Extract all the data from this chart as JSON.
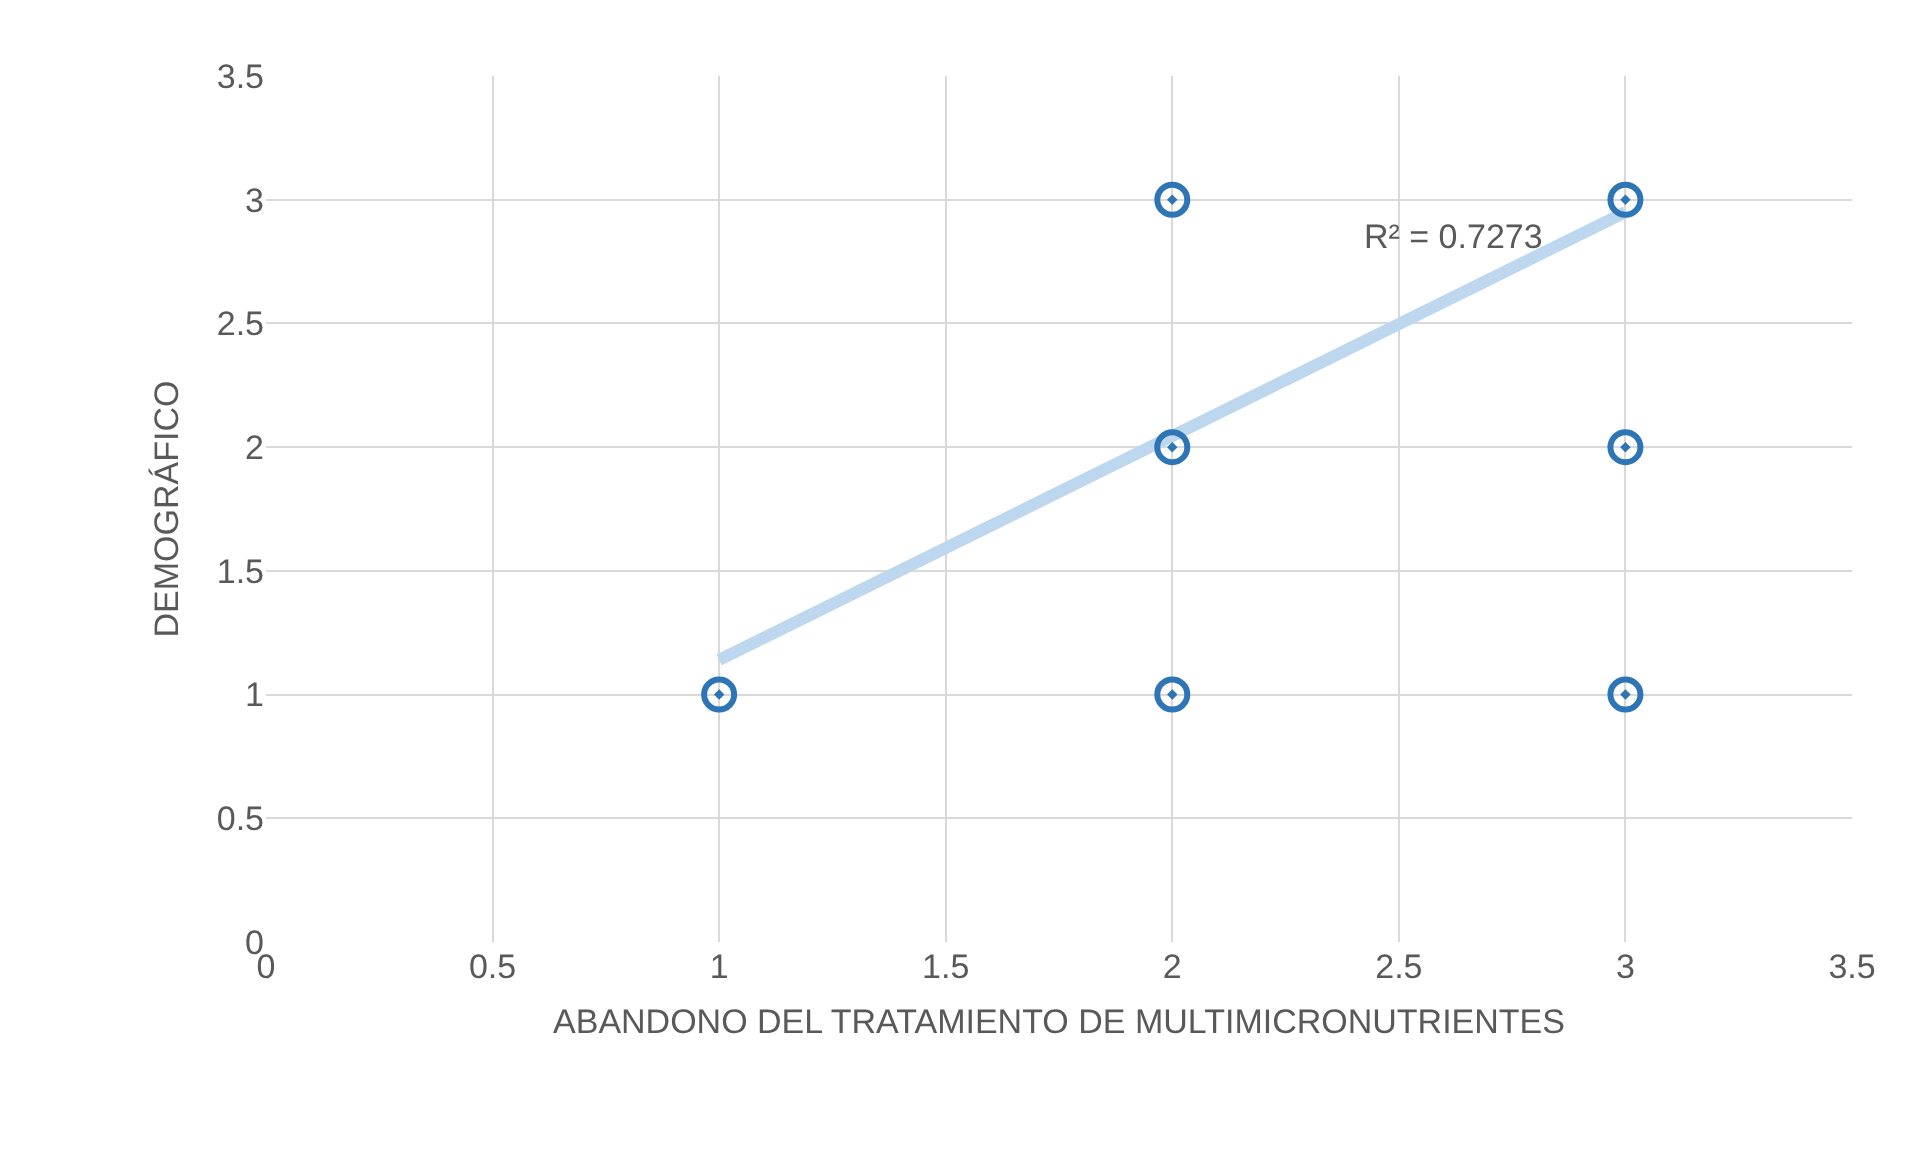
{
  "chart_data": {
    "type": "scatter",
    "xlabel": "ABANDONO DEL TRATAMIENTO DE MULTIMICRONUTRIENTES",
    "ylabel": "DEMOGRÁFICO",
    "series": [
      {
        "color": "#2e75b6",
        "marker": "circle",
        "x": [
          1,
          2,
          2,
          2,
          3,
          3,
          3
        ],
        "values": [
          1,
          3,
          2,
          1,
          3,
          2,
          1
        ]
      },
      {
        "type": "line",
        "marker": "none",
        "color": "#bdd7ee",
        "x": [
          1,
          3
        ],
        "values": [
          1.14,
          2.95
        ]
      }
    ],
    "annotations": [
      "R² = 0.7273"
    ],
    "xlim": [
      0,
      3.5
    ],
    "xticks": [
      0,
      0.5,
      1,
      1.5,
      2,
      2.5,
      3,
      3.5
    ],
    "ylim": [
      0,
      3.5
    ],
    "yticks": [
      0,
      0.5,
      1,
      1.5,
      2,
      2.5,
      3,
      3.5
    ],
    "grid": true,
    "legend": false
  }
}
